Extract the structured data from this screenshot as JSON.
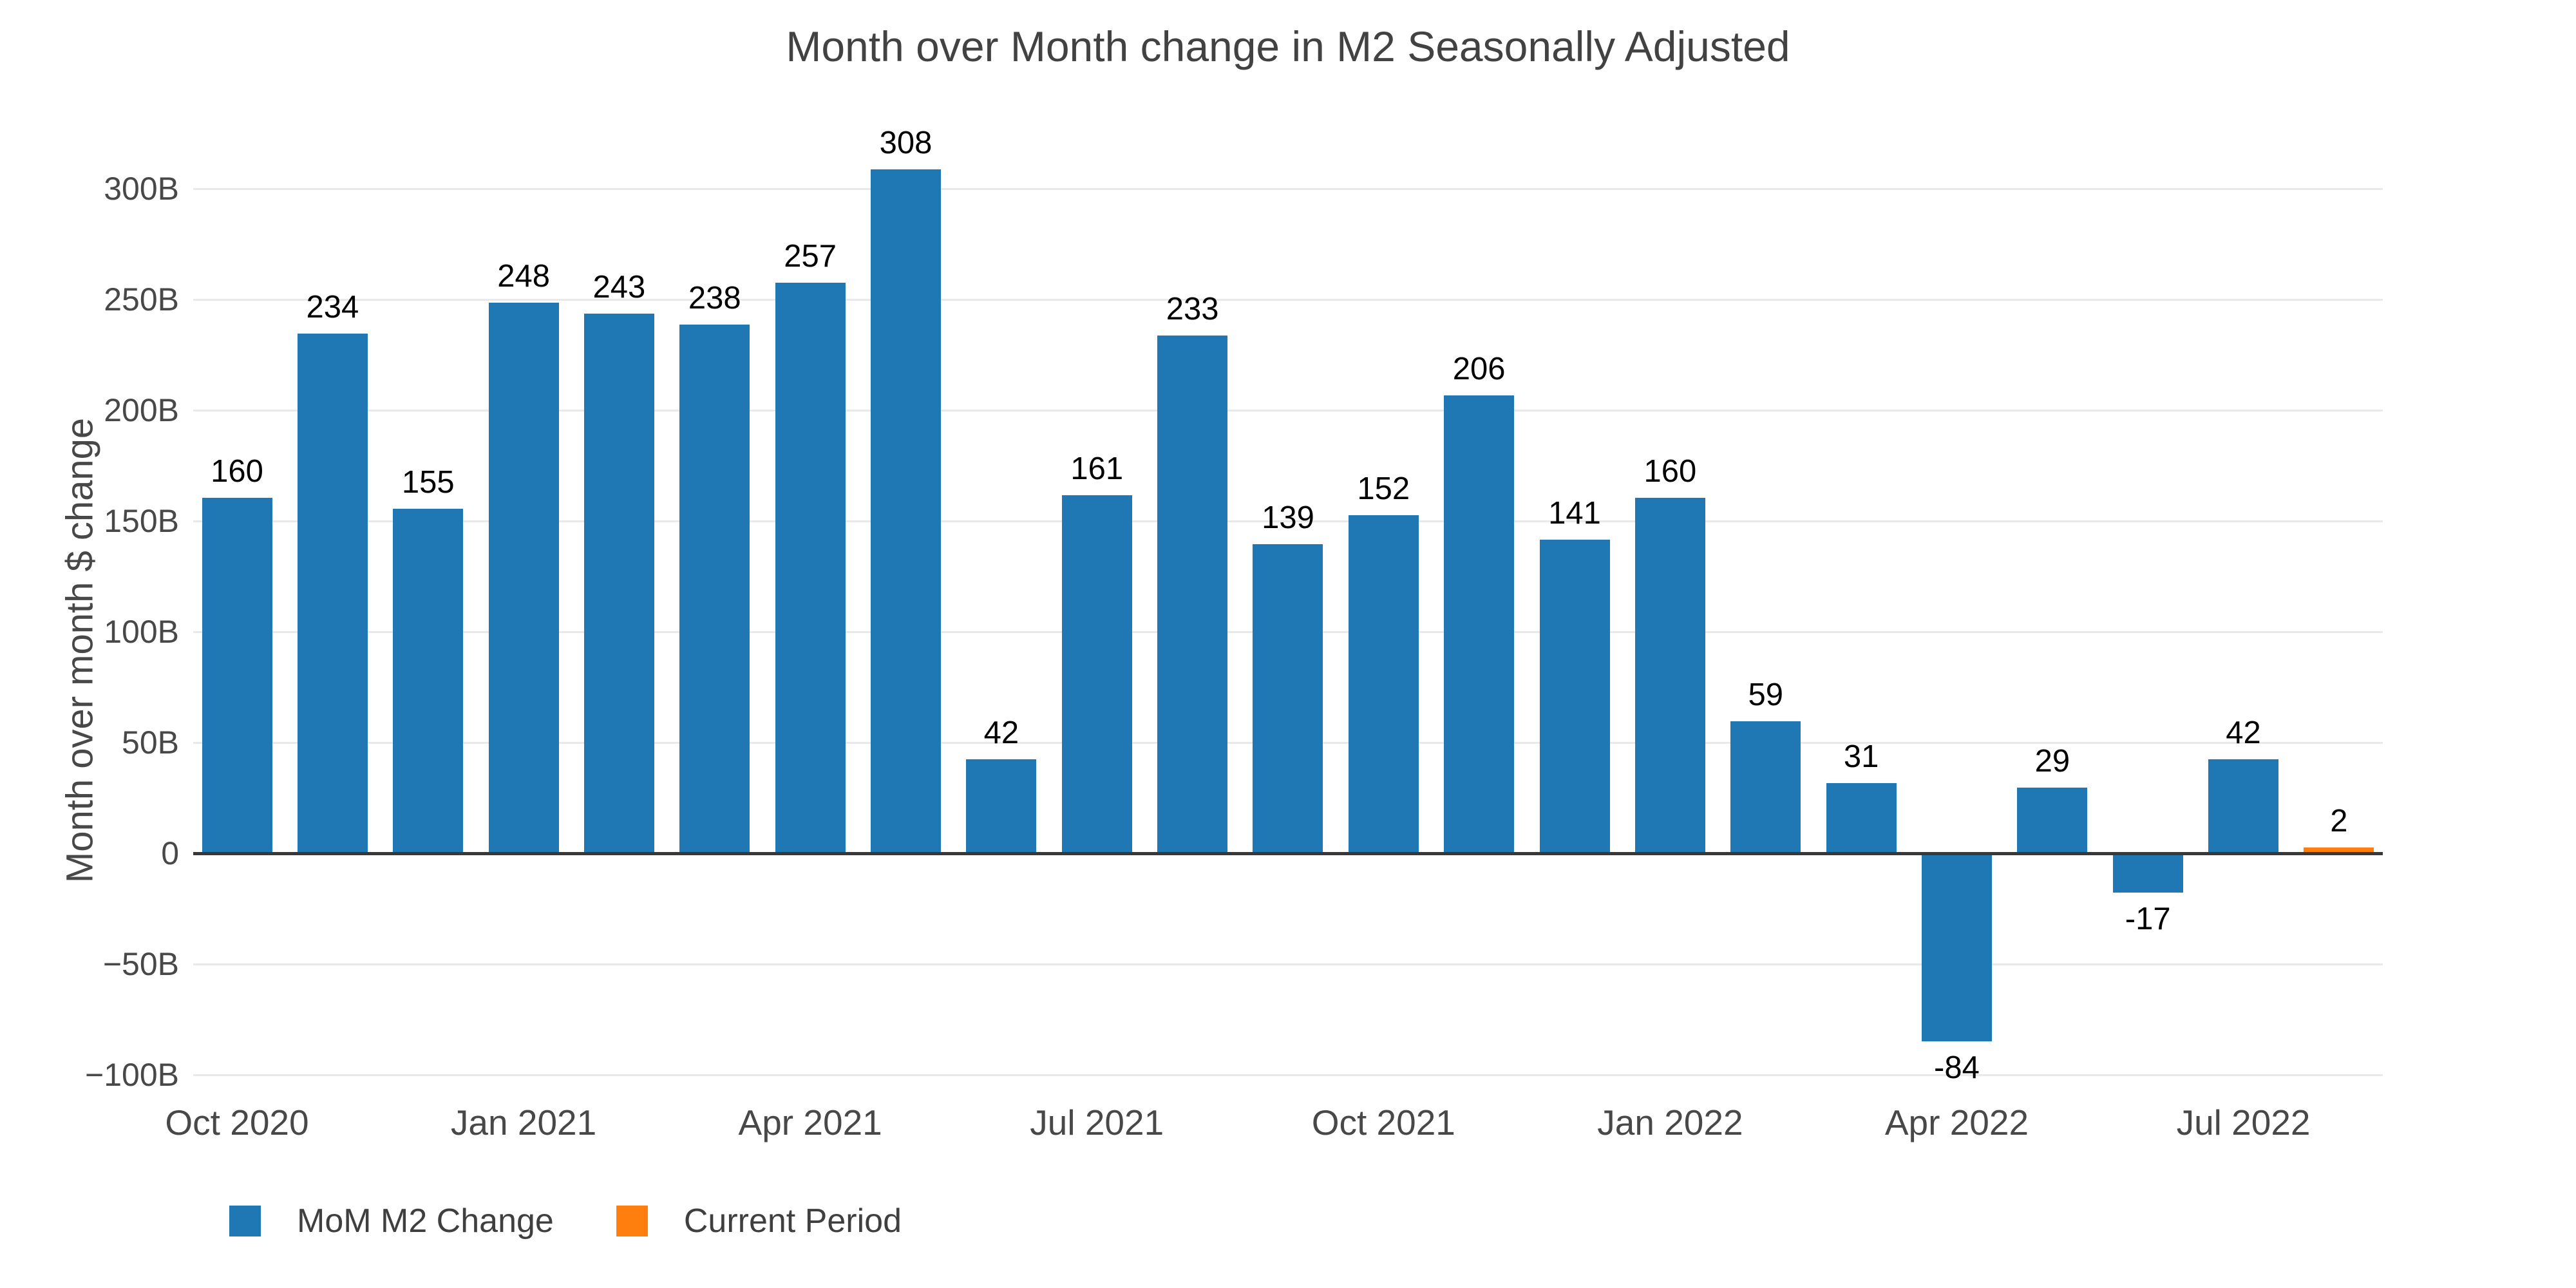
{
  "title": "Month over Month change in M2 Seasonally Adjusted",
  "chart_data": {
    "type": "bar",
    "title": "Month over Month change in M2 Seasonally Adjusted",
    "ylabel": "Month over month $ change",
    "xlabel": "",
    "values": [
      160,
      234,
      155,
      248,
      243,
      238,
      257,
      308,
      42,
      161,
      233,
      139,
      152,
      206,
      141,
      160,
      59,
      31,
      -84,
      29,
      -17,
      42,
      2
    ],
    "bar_labels": [
      "160",
      "234",
      "155",
      "248",
      "243",
      "238",
      "257",
      "308",
      "42",
      "161",
      "233",
      "139",
      "152",
      "206",
      "141",
      "160",
      "59",
      "31",
      "-84",
      "29",
      "-17",
      "42",
      "2"
    ],
    "current_period_index": 22,
    "x_tick_labels": [
      "Oct 2020",
      "Jan 2021",
      "Apr 2021",
      "Jul 2021",
      "Oct 2021",
      "Jan 2022",
      "Apr 2022",
      "Jul 2022"
    ],
    "x_tick_bar_indices": [
      0,
      3,
      6,
      9,
      12,
      15,
      18,
      21
    ],
    "y_ticks": [
      {
        "label": "300B",
        "value": 300
      },
      {
        "label": "250B",
        "value": 250
      },
      {
        "label": "200B",
        "value": 200
      },
      {
        "label": "150B",
        "value": 150
      },
      {
        "label": "100B",
        "value": 100
      },
      {
        "label": "50B",
        "value": 50
      },
      {
        "label": "0",
        "value": 0
      },
      {
        "label": "−50B",
        "value": -50
      },
      {
        "label": "−100B",
        "value": -100
      }
    ],
    "ylim": [
      -117,
      330
    ],
    "grid": "horizontal",
    "legend_position": "bottom-left",
    "colors": {
      "bar_default": "#1f77b4",
      "bar_current": "#ff7f0e",
      "gridline": "#e9e9e9",
      "zero_line": "#383838",
      "tick_text": "#484848",
      "value_label_text": "#000000",
      "title_text": "#424242"
    },
    "legend": [
      {
        "label": "MoM M2 Change",
        "color": "#1f77b4"
      },
      {
        "label": "Current Period",
        "color": "#ff7f0e"
      }
    ]
  }
}
